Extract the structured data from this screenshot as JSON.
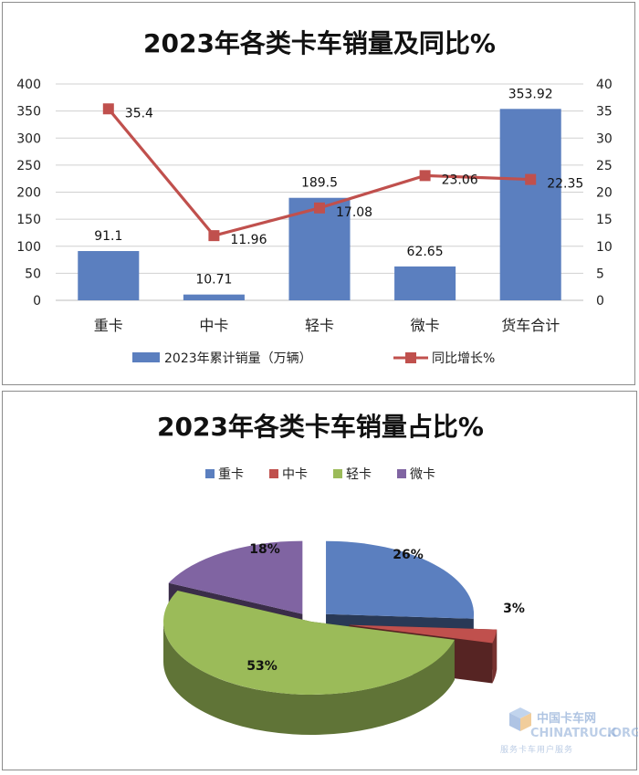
{
  "chart_data": [
    {
      "type": "bar",
      "title": "2023年各类卡车销量及同比%",
      "categories": [
        "重卡",
        "中卡",
        "轻卡",
        "微卡",
        "货车合计"
      ],
      "series": [
        {
          "name": "2023年累计销量（万辆）",
          "type": "bar",
          "axis": "left",
          "color": "#5b7fbf",
          "values": [
            91.1,
            10.71,
            189.5,
            62.65,
            353.92
          ],
          "labels": [
            "91.1",
            "10.71",
            "189.5",
            "62.65",
            "353.92"
          ]
        },
        {
          "name": "同比增长%",
          "type": "line",
          "axis": "right",
          "color": "#c0504d",
          "values": [
            35.4,
            11.96,
            17.08,
            23.06,
            22.35
          ],
          "labels": [
            "35.4",
            "11.96",
            "17.08",
            "23.06",
            "22.35"
          ]
        }
      ],
      "ylim_left": [
        0,
        400
      ],
      "ylim_right": [
        0,
        40
      ],
      "yticks_left": [
        "0",
        "50",
        "100",
        "150",
        "200",
        "250",
        "300",
        "350",
        "400"
      ],
      "yticks_right": [
        "0",
        "5",
        "10",
        "15",
        "20",
        "25",
        "30",
        "35",
        "40"
      ],
      "grid": true,
      "legend": "bottom"
    },
    {
      "type": "pie",
      "title": "2023年各类卡车销量占比%",
      "categories": [
        "重卡",
        "中卡",
        "轻卡",
        "微卡"
      ],
      "values": [
        26,
        3,
        53,
        18
      ],
      "labels": [
        "26%",
        "3%",
        "53%",
        "18%"
      ],
      "colors": [
        "#5b7fbf",
        "#c0504d",
        "#9bbb59",
        "#8064a2"
      ],
      "style": "3d-exploded",
      "legend": "top"
    }
  ],
  "watermark": {
    "name": "中国卡车网",
    "latin": "CHINATRUCK",
    "suffix": ".ORG",
    "slogan": "服务卡车用户服务"
  }
}
